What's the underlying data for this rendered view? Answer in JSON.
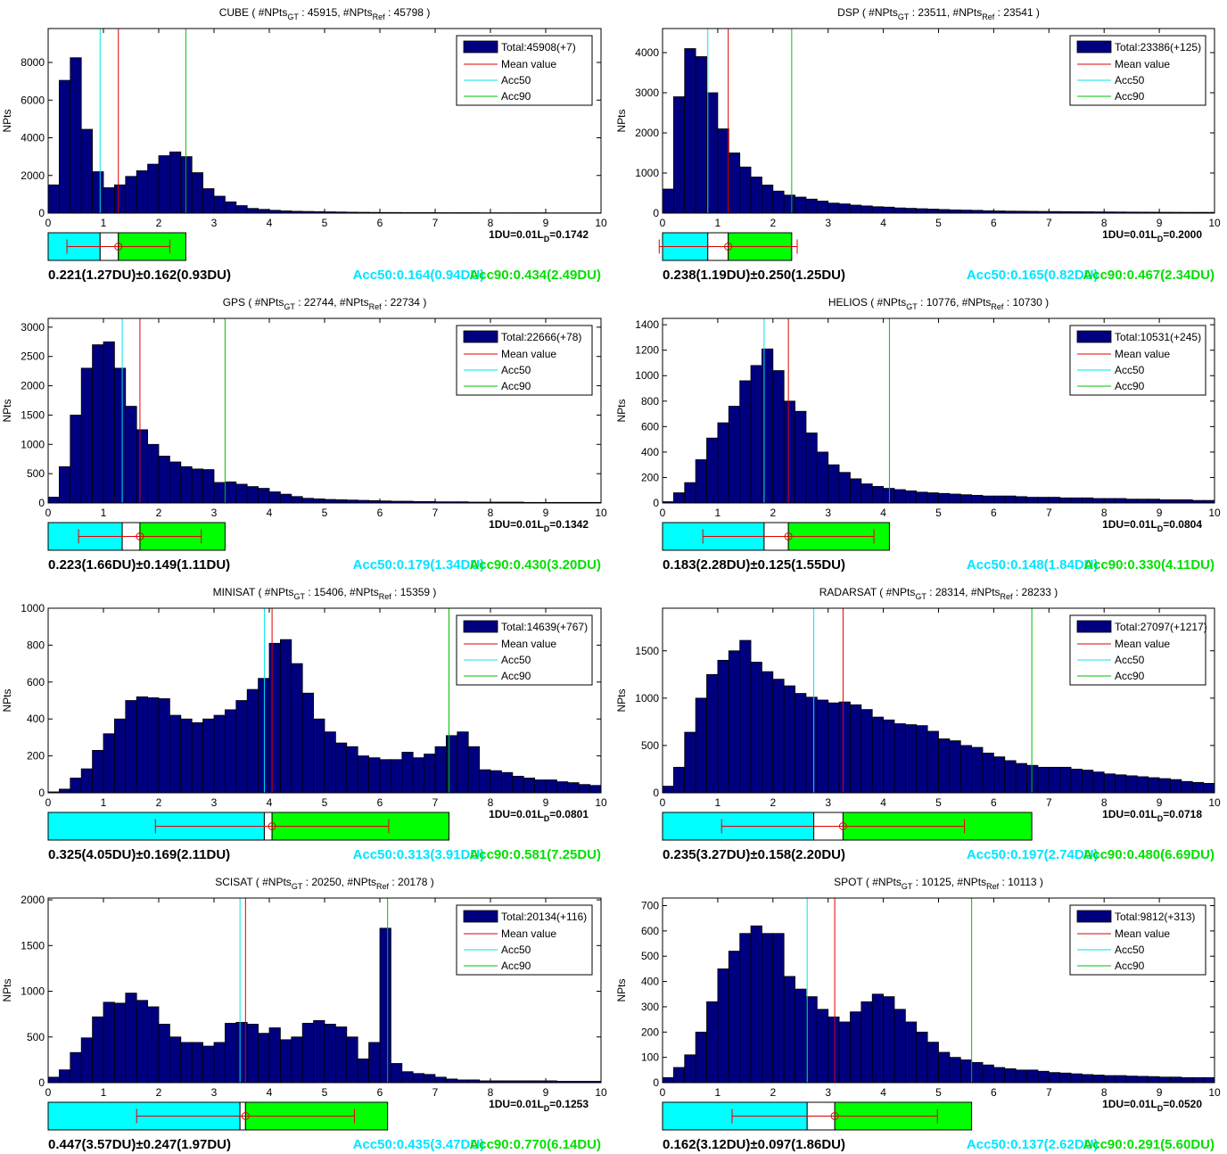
{
  "legend_labels": {
    "mean": "Mean value",
    "acc50": "Acc50",
    "acc90": "Acc90"
  },
  "y_label": "NPts",
  "colors": {
    "bar": "#00007f",
    "mean": "#e00000",
    "acc50": "#00e5ee",
    "acc90": "#00c000",
    "text_acc50": "#00e5ff",
    "text_acc90": "#00e000"
  },
  "chart_data": [
    {
      "type": "bar",
      "name": "CUBE",
      "title_prefix": "CUBE ( #NPts",
      "sub_gt": "GT",
      "title_mid": " : 45915, #NPts",
      "sub_ref": "Ref",
      "title_suffix": " : 45798 )",
      "ylabel": "NPts",
      "xlim": [
        0,
        10
      ],
      "ylim": [
        0,
        9800
      ],
      "x_ticks": [
        0,
        1,
        2,
        3,
        4,
        5,
        6,
        7,
        8,
        9,
        10
      ],
      "y_ticks": [
        0,
        2000,
        4000,
        6000,
        8000
      ],
      "bin_width": 0.2,
      "values": [
        1500,
        7050,
        8250,
        4450,
        2200,
        1350,
        1500,
        1950,
        2250,
        2600,
        3050,
        3250,
        3000,
        2150,
        1300,
        900,
        600,
        400,
        250,
        200,
        150,
        120,
        100,
        90,
        80,
        70,
        60,
        50,
        45,
        40,
        35,
        35,
        30,
        30,
        30,
        25,
        25,
        25,
        25,
        20,
        20,
        20,
        20,
        20,
        20,
        15,
        15,
        15,
        15,
        15
      ],
      "legend": "Total:45908(+7)",
      "mean": 1.27,
      "acc50": 0.94,
      "acc90": 2.49,
      "err_low": 0.93,
      "err_high": 0.93,
      "scale_prefix": "1DU=0.01L",
      "scale_sub": "D",
      "scale_suffix": "=0.1742",
      "stat_mean": "0.221(1.27DU)±0.162(0.93DU)",
      "stat_acc50": "Acc50:0.164(0.94DU)",
      "stat_acc90": "Acc90:0.434(2.49DU)"
    },
    {
      "type": "bar",
      "name": "DSP",
      "title_prefix": "DSP ( #NPts",
      "sub_gt": "GT",
      "title_mid": " : 23511, #NPts",
      "sub_ref": "Ref",
      "title_suffix": " : 23541 )",
      "ylabel": "NPts",
      "xlim": [
        0,
        10
      ],
      "ylim": [
        0,
        4600
      ],
      "x_ticks": [
        0,
        1,
        2,
        3,
        4,
        5,
        6,
        7,
        8,
        9,
        10
      ],
      "y_ticks": [
        0,
        1000,
        2000,
        3000,
        4000
      ],
      "bin_width": 0.2,
      "values": [
        600,
        2900,
        4100,
        3900,
        3000,
        2100,
        1500,
        1150,
        900,
        700,
        550,
        450,
        400,
        350,
        300,
        250,
        230,
        200,
        180,
        160,
        150,
        130,
        120,
        110,
        100,
        90,
        80,
        75,
        70,
        60,
        55,
        50,
        48,
        45,
        42,
        40,
        38,
        36,
        34,
        32,
        30,
        28,
        26,
        25,
        24,
        22,
        21,
        20,
        20,
        20
      ],
      "legend": "Total:23386(+125)",
      "mean": 1.19,
      "acc50": 0.82,
      "acc90": 2.34,
      "err_low": 1.25,
      "err_high": 1.25,
      "scale_prefix": "1DU=0.01L",
      "scale_sub": "D",
      "scale_suffix": "=0.2000",
      "stat_mean": "0.238(1.19DU)±0.250(1.25DU)",
      "stat_acc50": "Acc50:0.165(0.82DU)",
      "stat_acc90": "Acc90:0.467(2.34DU)"
    },
    {
      "type": "bar",
      "name": "GPS",
      "title_prefix": "GPS ( #NPts",
      "sub_gt": "GT",
      "title_mid": " : 22744, #NPts",
      "sub_ref": "Ref",
      "title_suffix": " : 22734 )",
      "ylabel": "NPts",
      "xlim": [
        0,
        10
      ],
      "ylim": [
        0,
        3150
      ],
      "x_ticks": [
        0,
        1,
        2,
        3,
        4,
        5,
        6,
        7,
        8,
        9,
        10
      ],
      "y_ticks": [
        0,
        500,
        1000,
        1500,
        2000,
        2500,
        3000
      ],
      "bin_width": 0.2,
      "values": [
        100,
        620,
        1500,
        2300,
        2700,
        2750,
        2300,
        1650,
        1250,
        1000,
        800,
        700,
        620,
        580,
        570,
        350,
        360,
        320,
        280,
        250,
        190,
        150,
        110,
        80,
        70,
        60,
        55,
        50,
        45,
        40,
        35,
        30,
        30,
        25,
        25,
        20,
        20,
        20,
        15,
        15,
        15,
        15,
        15,
        10,
        10,
        10,
        10,
        10,
        10,
        10
      ],
      "legend": "Total:22666(+78)",
      "mean": 1.66,
      "acc50": 1.34,
      "acc90": 3.2,
      "err_low": 1.11,
      "err_high": 1.11,
      "scale_prefix": "1DU=0.01L",
      "scale_sub": "D",
      "scale_suffix": "=0.1342",
      "stat_mean": "0.223(1.66DU)±0.149(1.11DU)",
      "stat_acc50": "Acc50:0.179(1.34DU)",
      "stat_acc90": "Acc90:0.430(3.20DU)"
    },
    {
      "type": "bar",
      "name": "HELIOS",
      "title_prefix": "HELIOS ( #NPts",
      "sub_gt": "GT",
      "title_mid": " : 10776, #NPts",
      "sub_ref": "Ref",
      "title_suffix": " : 10730 )",
      "ylabel": "NPts",
      "xlim": [
        0,
        10
      ],
      "ylim": [
        0,
        1450
      ],
      "x_ticks": [
        0,
        1,
        2,
        3,
        4,
        5,
        6,
        7,
        8,
        9,
        10
      ],
      "y_ticks": [
        0,
        200,
        400,
        600,
        800,
        1000,
        1200,
        1400
      ],
      "bin_width": 0.2,
      "values": [
        10,
        80,
        160,
        340,
        510,
        630,
        760,
        960,
        1080,
        1210,
        1040,
        800,
        720,
        550,
        400,
        300,
        240,
        190,
        150,
        130,
        115,
        105,
        95,
        85,
        80,
        75,
        70,
        65,
        60,
        55,
        55,
        55,
        50,
        45,
        45,
        45,
        40,
        40,
        40,
        35,
        35,
        35,
        30,
        30,
        30,
        25,
        25,
        25,
        20,
        20
      ],
      "legend": "Total:10531(+245)",
      "mean": 2.28,
      "acc50": 1.84,
      "acc90": 4.11,
      "err_low": 1.55,
      "err_high": 1.55,
      "scale_prefix": "1DU=0.01L",
      "scale_sub": "D",
      "scale_suffix": "=0.0804",
      "stat_mean": "0.183(2.28DU)±0.125(1.55DU)",
      "stat_acc50": "Acc50:0.148(1.84DU)",
      "stat_acc90": "Acc90:0.330(4.11DU)"
    },
    {
      "type": "bar",
      "name": "MINISAT",
      "title_prefix": "MINISAT ( #NPts",
      "sub_gt": "GT",
      "title_mid": " : 15406, #NPts",
      "sub_ref": "Ref",
      "title_suffix": " : 15359 )",
      "ylabel": "NPts",
      "xlim": [
        0,
        10
      ],
      "ylim": [
        0,
        1000
      ],
      "x_ticks": [
        0,
        1,
        2,
        3,
        4,
        5,
        6,
        7,
        8,
        9,
        10
      ],
      "y_ticks": [
        0,
        200,
        400,
        600,
        800,
        1000
      ],
      "bin_width": 0.2,
      "values": [
        5,
        20,
        80,
        130,
        230,
        320,
        400,
        500,
        520,
        515,
        510,
        420,
        400,
        380,
        400,
        420,
        450,
        500,
        560,
        620,
        810,
        830,
        700,
        540,
        400,
        330,
        270,
        250,
        200,
        190,
        180,
        180,
        220,
        190,
        210,
        250,
        310,
        330,
        250,
        125,
        120,
        110,
        90,
        80,
        70,
        70,
        60,
        55,
        45,
        40
      ],
      "legend": "Total:14639(+767)",
      "mean": 4.05,
      "acc50": 3.91,
      "acc90": 7.25,
      "err_low": 2.11,
      "err_high": 2.11,
      "scale_prefix": "1DU=0.01L",
      "scale_sub": "D",
      "scale_suffix": "=0.0801",
      "stat_mean": "0.325(4.05DU)±0.169(2.11DU)",
      "stat_acc50": "Acc50:0.313(3.91DU)",
      "stat_acc90": "Acc90:0.581(7.25DU)"
    },
    {
      "type": "bar",
      "name": "RADARSAT",
      "title_prefix": "RADARSAT ( #NPts",
      "sub_gt": "GT",
      "title_mid": " : 28314, #NPts",
      "sub_ref": "Ref",
      "title_suffix": " : 28233 )",
      "ylabel": "NPts",
      "xlim": [
        0,
        10
      ],
      "ylim": [
        0,
        1950
      ],
      "x_ticks": [
        0,
        1,
        2,
        3,
        4,
        5,
        6,
        7,
        8,
        9,
        10
      ],
      "y_ticks": [
        0,
        500,
        1000,
        1500
      ],
      "bin_width": 0.2,
      "values": [
        70,
        270,
        640,
        1000,
        1250,
        1400,
        1500,
        1610,
        1380,
        1280,
        1200,
        1130,
        1050,
        1010,
        980,
        950,
        960,
        930,
        880,
        800,
        770,
        730,
        720,
        710,
        650,
        570,
        550,
        500,
        480,
        420,
        380,
        340,
        310,
        290,
        270,
        270,
        270,
        250,
        240,
        220,
        200,
        190,
        180,
        170,
        160,
        150,
        140,
        120,
        110,
        100
      ],
      "legend": "Total:27097(+1217)",
      "mean": 3.27,
      "acc50": 2.74,
      "acc90": 6.69,
      "err_low": 2.2,
      "err_high": 2.2,
      "scale_prefix": "1DU=0.01L",
      "scale_sub": "D",
      "scale_suffix": "=0.0718",
      "stat_mean": "0.235(3.27DU)±0.158(2.20DU)",
      "stat_acc50": "Acc50:0.197(2.74DU)",
      "stat_acc90": "Acc90:0.480(6.69DU)"
    },
    {
      "type": "bar",
      "name": "SCISAT",
      "title_prefix": "SCISAT ( #NPts",
      "sub_gt": "GT",
      "title_mid": " : 20250, #NPts",
      "sub_ref": "Ref",
      "title_suffix": " : 20178 )",
      "ylabel": "NPts",
      "xlim": [
        0,
        10
      ],
      "ylim": [
        0,
        2020
      ],
      "x_ticks": [
        0,
        1,
        2,
        3,
        4,
        5,
        6,
        7,
        8,
        9,
        10
      ],
      "y_ticks": [
        0,
        500,
        1000,
        1500,
        2000
      ],
      "bin_width": 0.2,
      "values": [
        60,
        140,
        330,
        490,
        720,
        880,
        870,
        980,
        900,
        830,
        640,
        500,
        440,
        440,
        400,
        440,
        650,
        660,
        640,
        540,
        600,
        470,
        500,
        650,
        680,
        640,
        610,
        500,
        260,
        440,
        1690,
        210,
        120,
        100,
        90,
        60,
        40,
        30,
        30,
        20,
        20,
        20,
        20,
        20,
        20,
        20,
        15,
        15,
        15,
        15
      ],
      "legend": "Total:20134(+116)",
      "mean": 3.57,
      "acc50": 3.47,
      "acc90": 6.14,
      "err_low": 1.97,
      "err_high": 1.97,
      "scale_prefix": "1DU=0.01L",
      "scale_sub": "D",
      "scale_suffix": "=0.1253",
      "stat_mean": "0.447(3.57DU)±0.247(1.97DU)",
      "stat_acc50": "Acc50:0.435(3.47DU)",
      "stat_acc90": "Acc90:0.770(6.14DU)"
    },
    {
      "type": "bar",
      "name": "SPOT",
      "title_prefix": "SPOT ( #NPts",
      "sub_gt": "GT",
      "title_mid": " : 10125, #NPts",
      "sub_ref": "Ref",
      "title_suffix": " : 10113 )",
      "ylabel": "NPts",
      "xlim": [
        0,
        10
      ],
      "ylim": [
        0,
        730
      ],
      "x_ticks": [
        0,
        1,
        2,
        3,
        4,
        5,
        6,
        7,
        8,
        9,
        10
      ],
      "y_ticks": [
        0,
        100,
        200,
        300,
        400,
        500,
        600,
        700
      ],
      "bin_width": 0.2,
      "values": [
        20,
        60,
        110,
        200,
        320,
        450,
        520,
        590,
        620,
        590,
        590,
        420,
        370,
        340,
        290,
        260,
        240,
        280,
        320,
        350,
        340,
        290,
        240,
        200,
        160,
        120,
        100,
        90,
        80,
        70,
        60,
        55,
        50,
        50,
        45,
        40,
        38,
        35,
        32,
        30,
        28,
        28,
        26,
        25,
        24,
        22,
        22,
        20,
        20,
        20
      ],
      "legend": "Total:9812(+313)",
      "mean": 3.12,
      "acc50": 2.62,
      "acc90": 5.6,
      "err_low": 1.86,
      "err_high": 1.86,
      "scale_prefix": "1DU=0.01L",
      "scale_sub": "D",
      "scale_suffix": "=0.0520",
      "stat_mean": "0.162(3.12DU)±0.097(1.86DU)",
      "stat_acc50": "Acc50:0.137(2.62DU)",
      "stat_acc90": "Acc90:0.291(5.60DU)"
    }
  ]
}
